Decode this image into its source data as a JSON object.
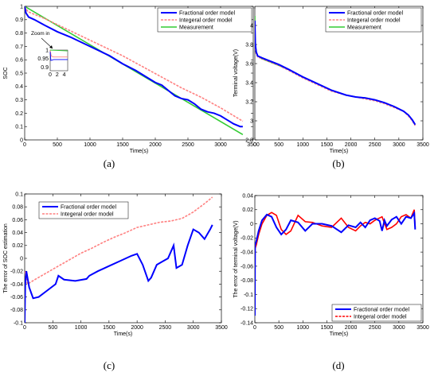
{
  "colors": {
    "fractional": "#0000ff",
    "integral": "#ff8080",
    "measurement": "#33cc33",
    "integral_d": "#ff0000"
  },
  "chart_data": [
    {
      "panel": "a",
      "caption": "(a)",
      "type": "line",
      "xlabel": "Time(s)",
      "ylabel": "SOC",
      "xlim": [
        0,
        3500
      ],
      "ylim": [
        0,
        1
      ],
      "xticks": [
        0,
        500,
        1000,
        1500,
        2000,
        2500,
        3000,
        3500
      ],
      "yticks": [
        0,
        0.1,
        0.2,
        0.3,
        0.4,
        0.5,
        0.6,
        0.7,
        0.8,
        0.9,
        1
      ],
      "grid": false,
      "legend_position": "top-right",
      "annotation": "Zoom in",
      "inset": {
        "xticks": [
          0,
          2,
          4
        ],
        "yticks": [
          0.9,
          0.95,
          1
        ],
        "xlim": [
          0,
          5
        ],
        "ylim": [
          0.88,
          1.0
        ]
      },
      "series": [
        {
          "name": "Fractional order model",
          "color_key": "fractional",
          "x": [
            0,
            20,
            60,
            150,
            300,
            500,
            700,
            1000,
            1300,
            1500,
            1700,
            1900,
            2000,
            2100,
            2200,
            2300,
            2400,
            2500,
            2600,
            2700,
            2800,
            2900,
            3000,
            3100,
            3200,
            3300,
            3340
          ],
          "y": [
            1.0,
            0.95,
            0.92,
            0.9,
            0.86,
            0.81,
            0.77,
            0.7,
            0.63,
            0.57,
            0.52,
            0.46,
            0.43,
            0.41,
            0.37,
            0.33,
            0.31,
            0.3,
            0.27,
            0.23,
            0.21,
            0.2,
            0.18,
            0.15,
            0.12,
            0.1,
            0.1
          ]
        },
        {
          "name": "Integeral order model",
          "color_key": "integral",
          "x": [
            0,
            50,
            300,
            600,
            900,
            1200,
            1500,
            1800,
            2100,
            2400,
            2700,
            3000,
            3340
          ],
          "y": [
            1.0,
            0.96,
            0.91,
            0.84,
            0.77,
            0.7,
            0.63,
            0.55,
            0.47,
            0.39,
            0.32,
            0.24,
            0.14
          ]
        },
        {
          "name": "Measurement",
          "color_key": "measurement",
          "x": [
            0,
            3340
          ],
          "y": [
            1.0,
            0.04
          ]
        }
      ]
    },
    {
      "panel": "b",
      "caption": "(b)",
      "type": "line",
      "xlabel": "Time(s)",
      "ylabel": "Terminal voltage(V)",
      "xlim": [
        0,
        3500
      ],
      "ylim": [
        2.8,
        4.2
      ],
      "xticks": [
        0,
        500,
        1000,
        1500,
        2000,
        2500,
        3000,
        3500
      ],
      "yticks": [
        2.8,
        3,
        3.2,
        3.4,
        3.6,
        3.8,
        4
      ],
      "grid": false,
      "legend_position": "top-right",
      "series": [
        {
          "name": "Fractional order model",
          "color_key": "fractional",
          "x": [
            0,
            10,
            30,
            60,
            150,
            300,
            500,
            700,
            1000,
            1300,
            1600,
            1900,
            2100,
            2300,
            2500,
            2700,
            2900,
            3100,
            3200,
            3280,
            3340
          ],
          "y": [
            4.05,
            3.8,
            3.72,
            3.68,
            3.66,
            3.63,
            3.59,
            3.54,
            3.46,
            3.39,
            3.32,
            3.27,
            3.25,
            3.24,
            3.22,
            3.19,
            3.15,
            3.1,
            3.06,
            3.01,
            2.96
          ]
        },
        {
          "name": "Integeral order model",
          "color_key": "integral",
          "x": [
            0,
            10,
            30,
            60,
            150,
            300,
            500,
            700,
            1000,
            1300,
            1600,
            1900,
            2100,
            2300,
            2500,
            2700,
            2900,
            3100,
            3200,
            3280,
            3340
          ],
          "y": [
            3.95,
            3.75,
            3.7,
            3.67,
            3.65,
            3.62,
            3.58,
            3.53,
            3.45,
            3.38,
            3.31,
            3.27,
            3.25,
            3.23,
            3.21,
            3.18,
            3.14,
            3.1,
            3.05,
            3.0,
            2.95
          ]
        },
        {
          "name": "Measurement",
          "color_key": "measurement",
          "x": [
            0,
            5,
            20,
            60,
            150,
            300,
            500,
            700,
            1000,
            1300,
            1600,
            1900,
            2100,
            2300,
            2500,
            2700,
            2900,
            3100,
            3200,
            3280,
            3340
          ],
          "y": [
            4.1,
            3.85,
            3.73,
            3.68,
            3.65,
            3.62,
            3.58,
            3.54,
            3.46,
            3.39,
            3.32,
            3.27,
            3.25,
            3.24,
            3.22,
            3.19,
            3.15,
            3.1,
            3.06,
            3.01,
            2.96
          ]
        }
      ]
    },
    {
      "panel": "c",
      "caption": "(c)",
      "type": "line",
      "xlabel": "Time(s)",
      "ylabel": "The error of SOC estimation",
      "xlim": [
        0,
        3500
      ],
      "ylim": [
        -0.1,
        0.1
      ],
      "xticks": [
        0,
        500,
        1000,
        1500,
        2000,
        2500,
        3000,
        3500
      ],
      "yticks": [
        -0.1,
        -0.08,
        -0.06,
        -0.04,
        -0.02,
        0,
        0.02,
        0.04,
        0.06,
        0.08,
        0.1
      ],
      "grid": false,
      "legend_position": "top-left",
      "series": [
        {
          "name": "Fractional order model",
          "color_key": "fractional",
          "x": [
            0,
            10,
            30,
            80,
            150,
            250,
            400,
            550,
            600,
            700,
            900,
            1100,
            1150,
            1300,
            1500,
            1700,
            1900,
            2000,
            2100,
            2200,
            2250,
            2350,
            2450,
            2550,
            2650,
            2700,
            2800,
            2900,
            3000,
            3100,
            3200,
            3300,
            3340
          ],
          "y": [
            -0.1,
            -0.04,
            -0.02,
            -0.045,
            -0.062,
            -0.06,
            -0.05,
            -0.04,
            -0.027,
            -0.033,
            -0.035,
            -0.032,
            -0.027,
            -0.02,
            -0.012,
            -0.004,
            0.004,
            0.007,
            -0.01,
            -0.035,
            -0.03,
            -0.01,
            -0.005,
            0.0,
            0.02,
            -0.015,
            -0.01,
            0.02,
            0.045,
            0.04,
            0.03,
            0.045,
            0.052
          ]
        },
        {
          "name": "Integeral order model",
          "color_key": "integral",
          "x": [
            0,
            50,
            200,
            400,
            600,
            800,
            1000,
            1200,
            1400,
            1600,
            1800,
            2000,
            2200,
            2400,
            2600,
            2800,
            3000,
            3200,
            3340
          ],
          "y": [
            -0.02,
            -0.04,
            -0.032,
            -0.022,
            -0.012,
            -0.002,
            0.008,
            0.016,
            0.025,
            0.033,
            0.04,
            0.048,
            0.052,
            0.056,
            0.058,
            0.062,
            0.072,
            0.085,
            0.095
          ]
        }
      ]
    },
    {
      "panel": "d",
      "caption": "(d)",
      "type": "line",
      "xlabel": "Time(s)",
      "ylabel": "The error of terminal voltage(V)",
      "xlim": [
        0,
        3500
      ],
      "ylim": [
        -0.14,
        0.04
      ],
      "xticks": [
        0,
        500,
        1000,
        1500,
        2000,
        2500,
        3000,
        3500
      ],
      "yticks": [
        -0.14,
        -0.12,
        -0.1,
        -0.08,
        -0.06,
        -0.04,
        -0.02,
        0,
        0.02,
        0.04
      ],
      "grid": false,
      "legend_position": "bottom-right",
      "series": [
        {
          "name": "Fractional order model",
          "color_key": "fractional",
          "x": [
            0,
            5,
            30,
            80,
            150,
            250,
            350,
            450,
            550,
            650,
            750,
            900,
            1050,
            1200,
            1400,
            1600,
            1800,
            1950,
            2100,
            2200,
            2300,
            2400,
            2500,
            2600,
            2650,
            2700,
            2750,
            2850,
            2950,
            3050,
            3150,
            3250,
            3320,
            3340
          ],
          "y": [
            -0.13,
            -0.03,
            -0.025,
            -0.01,
            0.005,
            0.013,
            0.01,
            -0.005,
            -0.015,
            -0.008,
            0.005,
            0.002,
            -0.01,
            0.0,
            0.0,
            -0.003,
            -0.012,
            -0.002,
            -0.005,
            0.002,
            -0.005,
            0.005,
            0.008,
            0.004,
            -0.01,
            0.005,
            -0.003,
            0.006,
            0.01,
            0.0,
            0.01,
            0.008,
            0.015,
            -0.008
          ]
        },
        {
          "name": "Integeral order model",
          "color_key": "integral_d",
          "x": [
            0,
            5,
            30,
            80,
            150,
            250,
            350,
            450,
            550,
            650,
            750,
            900,
            1050,
            1200,
            1400,
            1600,
            1800,
            1950,
            2100,
            2200,
            2300,
            2400,
            2500,
            2650,
            2750,
            2850,
            2950,
            3050,
            3150,
            3250,
            3320,
            3340
          ],
          "y": [
            -0.12,
            -0.035,
            -0.03,
            -0.015,
            0.0,
            0.012,
            0.016,
            0.012,
            -0.008,
            -0.015,
            -0.01,
            0.012,
            0.003,
            0.002,
            -0.003,
            -0.005,
            0.008,
            -0.005,
            -0.01,
            -0.003,
            0.002,
            0.0,
            0.005,
            0.01,
            -0.008,
            -0.005,
            0.0,
            0.01,
            0.013,
            0.008,
            0.02,
            -0.005
          ]
        }
      ]
    }
  ]
}
